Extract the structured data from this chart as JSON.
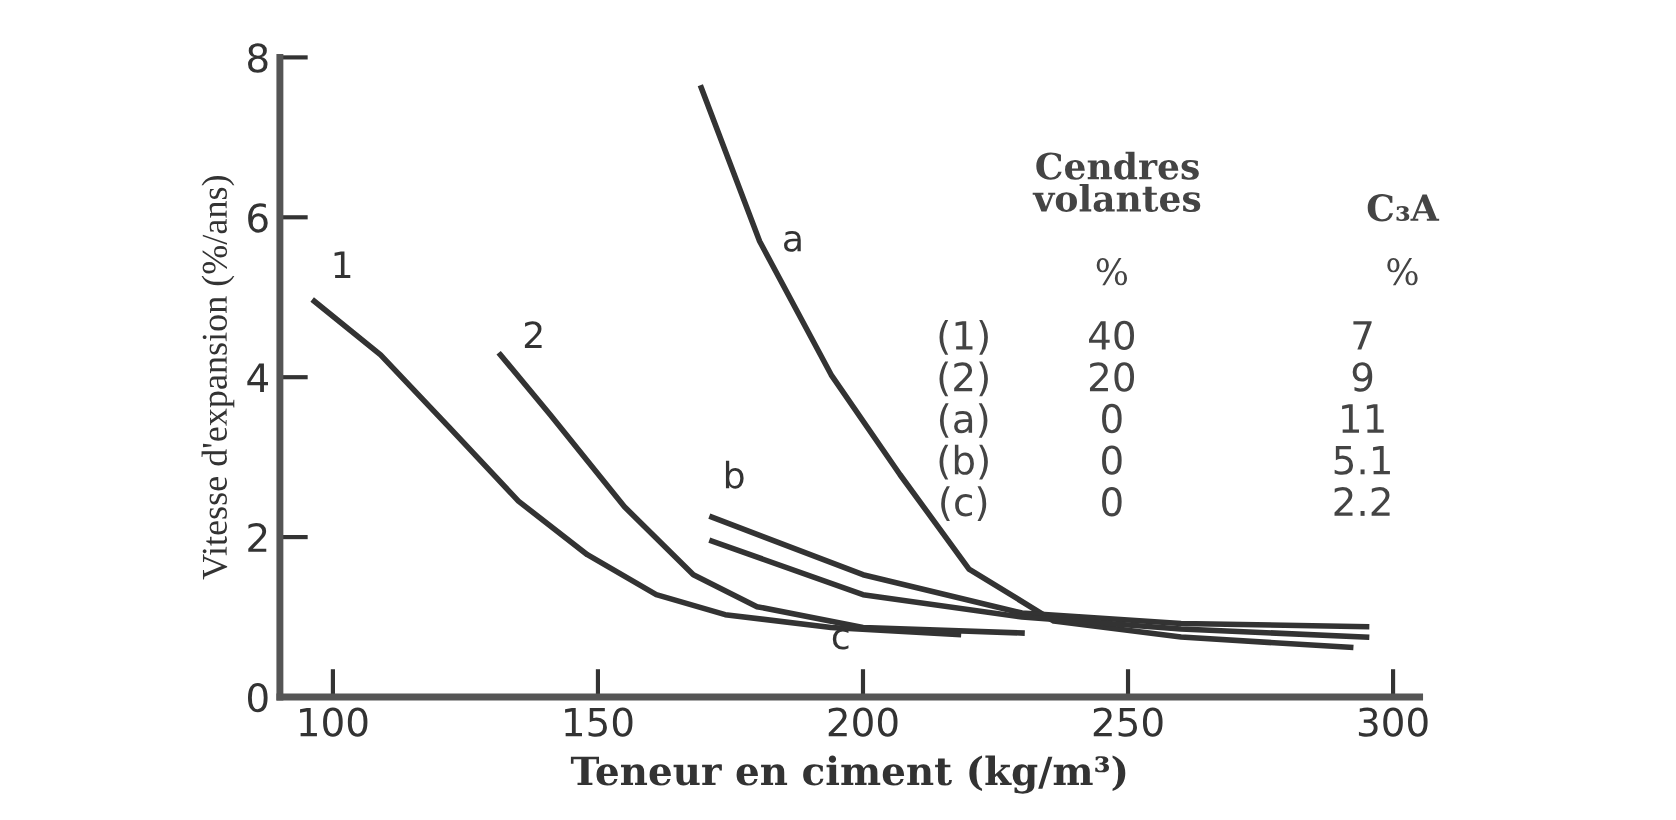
{
  "chart_data": {
    "type": "line",
    "xlabel": "Teneur en ciment (kg/m³)",
    "ylabel": "Vitesse d'expansion (%/ans)",
    "xlim": [
      90,
      305
    ],
    "ylim": [
      0,
      8
    ],
    "xticks": [
      100,
      150,
      200,
      250,
      300
    ],
    "yticks": [
      0,
      2,
      4,
      6,
      8
    ],
    "grid": false,
    "legend": false,
    "marker": "none",
    "line_style": "solid",
    "series": [
      {
        "color": "#333333",
        "x": [
          96.5,
          109,
          122,
          135,
          148,
          161,
          174,
          194,
          218
        ],
        "values": [
          4.95,
          4.28,
          3.37,
          2.45,
          1.78,
          1.28,
          1.03,
          0.87,
          0.78
        ]
      },
      {
        "color": "#333333",
        "x": [
          131.6,
          141,
          155,
          168,
          180,
          200,
          230
        ],
        "values": [
          4.28,
          3.53,
          2.38,
          1.53,
          1.13,
          0.87,
          0.8
        ]
      },
      {
        "color": "#333333",
        "x": [
          169.5,
          180.5,
          194,
          207,
          220,
          236,
          260,
          292
        ],
        "values": [
          7.62,
          5.7,
          4.03,
          2.78,
          1.6,
          0.95,
          0.75,
          0.62
        ]
      },
      {
        "color": "#333333",
        "x": [
          171.5,
          200,
          230,
          260,
          295
        ],
        "values": [
          2.25,
          1.53,
          1.05,
          0.92,
          0.88
        ]
      },
      {
        "color": "#333333",
        "x": [
          171.5,
          200,
          230,
          260,
          295
        ],
        "values": [
          1.95,
          1.28,
          1.0,
          0.85,
          0.75
        ]
      }
    ],
    "annotations": [
      {
        "text": "1",
        "x": 96.5,
        "y": 4.95
      },
      {
        "text": "2",
        "x": 131.6,
        "y": 4.28
      },
      {
        "text": "a",
        "x": 180.5,
        "y": 5.7
      },
      {
        "text": "b",
        "x": 171.5,
        "y": 2.25
      },
      {
        "text": "c",
        "x": 200,
        "y": 1.28
      },
      "Cendres\nvolantes",
      "C₃A",
      "%",
      "%",
      "(1)",
      "40",
      "7",
      "(2)",
      "20",
      "9",
      "(a)",
      "0",
      "11",
      "(b)",
      "0",
      "5.1",
      "(c)",
      "0",
      "2.2"
    ]
  }
}
